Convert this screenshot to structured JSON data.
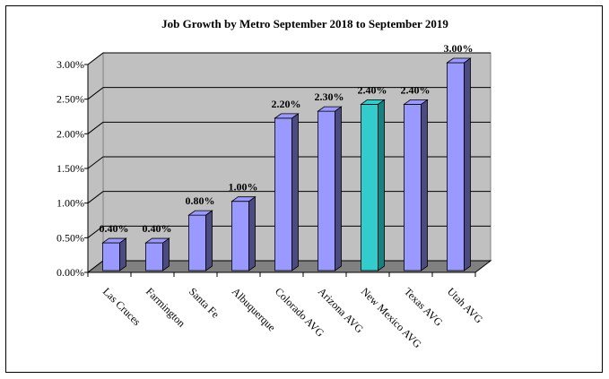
{
  "chart_data": {
    "type": "bar",
    "title": "Job Growth by Metro September 2018 to September 2019",
    "xlabel": "",
    "ylabel": "",
    "categories": [
      "Las Cruces",
      "Farmington",
      "Santa Fe",
      "Albuquerque",
      "Colorado AVG",
      "Arizona AVG",
      "New Mexico AVG",
      "Texas AVG",
      "Utah AVG"
    ],
    "values": [
      0.4,
      0.4,
      0.8,
      1.0,
      2.2,
      2.3,
      2.4,
      2.4,
      3.0
    ],
    "data_labels": [
      "0.40%",
      "0.40%",
      "0.80%",
      "1.00%",
      "2.20%",
      "2.30%",
      "2.40%",
      "2.40%",
      "3.00%"
    ],
    "ylim": [
      0,
      3
    ],
    "yticks": [
      "0.00%",
      "0.50%",
      "1.00%",
      "1.50%",
      "2.00%",
      "2.50%",
      "3.00%"
    ],
    "grid": true,
    "legend": "none",
    "colors": {
      "bar": "#9999FF",
      "bar_side": "#4B4B7F",
      "highlight": "#33CCCC",
      "highlight_side": "#198080",
      "wall": "#C0C0C0",
      "floor": "#808080"
    },
    "highlight_index": 6
  }
}
